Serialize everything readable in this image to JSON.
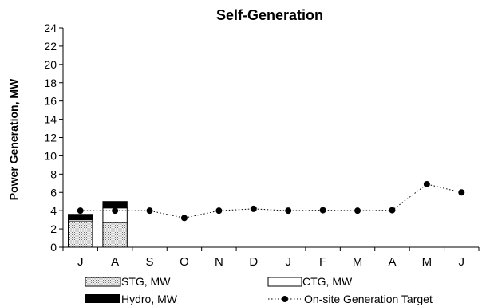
{
  "chart_data": {
    "type": "bar",
    "title": "Self-Generation",
    "xlabel": "",
    "ylabel": "Power Generation, MW",
    "ylim": [
      0,
      24
    ],
    "yticks": [
      0,
      2,
      4,
      6,
      8,
      10,
      12,
      14,
      16,
      18,
      20,
      22,
      24
    ],
    "grid": false,
    "legend_position": "bottom",
    "categories": [
      "J",
      "A",
      "S",
      "O",
      "N",
      "D",
      "J",
      "F",
      "M",
      "A",
      "M",
      "J"
    ],
    "series": [
      {
        "name": "STG, MW",
        "kind": "stacked-bar",
        "color": "#d0d0d0",
        "values": [
          2.8,
          2.7,
          null,
          null,
          null,
          null,
          null,
          null,
          null,
          null,
          null,
          null
        ]
      },
      {
        "name": "CTG, MW",
        "kind": "stacked-bar",
        "color": "#ffffff",
        "values": [
          0.2,
          1.6,
          null,
          null,
          null,
          null,
          null,
          null,
          null,
          null,
          null,
          null
        ]
      },
      {
        "name": "Hydro, MW",
        "kind": "stacked-bar",
        "color": "#000000",
        "values": [
          0.6,
          0.7,
          null,
          null,
          null,
          null,
          null,
          null,
          null,
          null,
          null,
          null
        ]
      },
      {
        "name": "On-site Generation Target",
        "kind": "line",
        "color": "#000000",
        "values": [
          4.0,
          4.0,
          4.0,
          3.2,
          4.0,
          4.2,
          4.0,
          4.05,
          4.0,
          4.05,
          6.9,
          6.0
        ]
      }
    ]
  }
}
